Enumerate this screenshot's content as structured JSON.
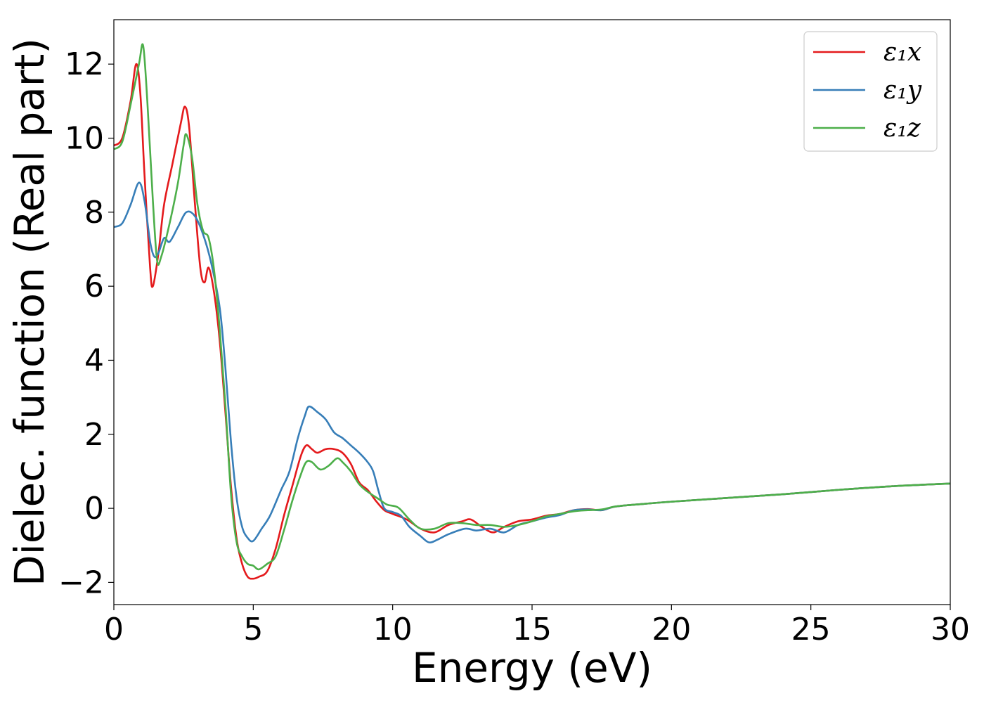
{
  "chart_data": {
    "type": "line",
    "xlabel": "Energy (eV)",
    "ylabel": "Dielec. function (Real part)",
    "xlim": [
      0,
      30
    ],
    "ylim": [
      -2.6,
      13.2
    ],
    "xticks": [
      0,
      5,
      10,
      15,
      20,
      25,
      30
    ],
    "yticks": [
      -2,
      0,
      2,
      4,
      6,
      8,
      10,
      12
    ],
    "xtick_labels": [
      "0",
      "5",
      "10",
      "15",
      "20",
      "25",
      "30"
    ],
    "ytick_labels": [
      "−2",
      "0",
      "2",
      "4",
      "6",
      "8",
      "10",
      "12"
    ],
    "grid": false,
    "legend_position": "top-right",
    "series": [
      {
        "name": "ε₁x",
        "color": "#e41a1c",
        "points": [
          [
            0,
            9.8
          ],
          [
            0.3,
            10.0
          ],
          [
            0.6,
            11.0
          ],
          [
            0.8,
            12.0
          ],
          [
            0.95,
            11.2
          ],
          [
            1.1,
            9.0
          ],
          [
            1.3,
            6.5
          ],
          [
            1.4,
            6.0
          ],
          [
            1.6,
            6.9
          ],
          [
            1.8,
            8.2
          ],
          [
            2.1,
            9.3
          ],
          [
            2.4,
            10.4
          ],
          [
            2.55,
            10.85
          ],
          [
            2.7,
            10.3
          ],
          [
            2.9,
            8.3
          ],
          [
            3.1,
            6.5
          ],
          [
            3.25,
            6.1
          ],
          [
            3.4,
            6.5
          ],
          [
            3.6,
            5.8
          ],
          [
            3.8,
            4.5
          ],
          [
            4.0,
            2.6
          ],
          [
            4.2,
            0.6
          ],
          [
            4.4,
            -0.8
          ],
          [
            4.6,
            -1.5
          ],
          [
            4.8,
            -1.85
          ],
          [
            5.0,
            -1.9
          ],
          [
            5.2,
            -1.85
          ],
          [
            5.5,
            -1.7
          ],
          [
            5.8,
            -1.1
          ],
          [
            6.1,
            -0.2
          ],
          [
            6.4,
            0.6
          ],
          [
            6.7,
            1.4
          ],
          [
            6.9,
            1.7
          ],
          [
            7.1,
            1.6
          ],
          [
            7.3,
            1.5
          ],
          [
            7.6,
            1.6
          ],
          [
            7.9,
            1.6
          ],
          [
            8.2,
            1.5
          ],
          [
            8.5,
            1.2
          ],
          [
            8.8,
            0.7
          ],
          [
            9.1,
            0.5
          ],
          [
            9.4,
            0.2
          ],
          [
            9.7,
            -0.05
          ],
          [
            10.0,
            -0.15
          ],
          [
            10.5,
            -0.3
          ],
          [
            11.0,
            -0.55
          ],
          [
            11.5,
            -0.65
          ],
          [
            12.0,
            -0.45
          ],
          [
            12.5,
            -0.35
          ],
          [
            12.8,
            -0.3
          ],
          [
            13.2,
            -0.5
          ],
          [
            13.6,
            -0.65
          ],
          [
            14.0,
            -0.5
          ],
          [
            14.5,
            -0.35
          ],
          [
            15.0,
            -0.3
          ],
          [
            15.5,
            -0.2
          ],
          [
            16.0,
            -0.15
          ],
          [
            16.5,
            -0.05
          ],
          [
            17.0,
            -0.02
          ],
          [
            17.5,
            -0.05
          ],
          [
            18.0,
            0.05
          ],
          [
            19.0,
            0.12
          ],
          [
            20.0,
            0.18
          ],
          [
            22.0,
            0.28
          ],
          [
            24.0,
            0.38
          ],
          [
            26.0,
            0.5
          ],
          [
            28.0,
            0.6
          ],
          [
            30.0,
            0.67
          ]
        ]
      },
      {
        "name": "ε₁y",
        "color": "#377eb8",
        "points": [
          [
            0,
            7.6
          ],
          [
            0.3,
            7.7
          ],
          [
            0.6,
            8.2
          ],
          [
            0.9,
            8.8
          ],
          [
            1.1,
            8.3
          ],
          [
            1.3,
            7.2
          ],
          [
            1.45,
            6.8
          ],
          [
            1.6,
            6.9
          ],
          [
            1.8,
            7.3
          ],
          [
            2.0,
            7.2
          ],
          [
            2.3,
            7.6
          ],
          [
            2.6,
            8.0
          ],
          [
            2.9,
            7.9
          ],
          [
            3.2,
            7.4
          ],
          [
            3.5,
            6.6
          ],
          [
            3.8,
            5.4
          ],
          [
            4.0,
            3.8
          ],
          [
            4.2,
            1.8
          ],
          [
            4.4,
            0.3
          ],
          [
            4.6,
            -0.5
          ],
          [
            4.8,
            -0.8
          ],
          [
            5.0,
            -0.88
          ],
          [
            5.3,
            -0.55
          ],
          [
            5.6,
            -0.2
          ],
          [
            6.0,
            0.5
          ],
          [
            6.3,
            1.0
          ],
          [
            6.6,
            1.9
          ],
          [
            6.85,
            2.5
          ],
          [
            7.0,
            2.75
          ],
          [
            7.3,
            2.6
          ],
          [
            7.6,
            2.4
          ],
          [
            7.9,
            2.05
          ],
          [
            8.2,
            1.9
          ],
          [
            8.5,
            1.7
          ],
          [
            8.8,
            1.5
          ],
          [
            9.1,
            1.25
          ],
          [
            9.3,
            1.0
          ],
          [
            9.5,
            0.45
          ],
          [
            9.7,
            0.0
          ],
          [
            10.0,
            -0.1
          ],
          [
            10.3,
            -0.2
          ],
          [
            10.6,
            -0.5
          ],
          [
            11.0,
            -0.75
          ],
          [
            11.3,
            -0.92
          ],
          [
            11.6,
            -0.85
          ],
          [
            12.0,
            -0.7
          ],
          [
            12.6,
            -0.55
          ],
          [
            13.0,
            -0.6
          ],
          [
            13.5,
            -0.55
          ],
          [
            14.0,
            -0.65
          ],
          [
            14.5,
            -0.45
          ],
          [
            15.0,
            -0.35
          ],
          [
            15.5,
            -0.25
          ],
          [
            16.0,
            -0.18
          ],
          [
            16.5,
            -0.05
          ],
          [
            17.0,
            -0.03
          ],
          [
            17.5,
            -0.05
          ],
          [
            18.0,
            0.05
          ],
          [
            19.0,
            0.12
          ],
          [
            20.0,
            0.18
          ],
          [
            22.0,
            0.28
          ],
          [
            24.0,
            0.38
          ],
          [
            26.0,
            0.5
          ],
          [
            28.0,
            0.6
          ],
          [
            30.0,
            0.67
          ]
        ]
      },
      {
        "name": "ε₁z",
        "color": "#4daf4a",
        "points": [
          [
            0,
            9.7
          ],
          [
            0.3,
            9.9
          ],
          [
            0.6,
            10.9
          ],
          [
            0.9,
            12.0
          ],
          [
            1.05,
            12.5
          ],
          [
            1.2,
            11.0
          ],
          [
            1.4,
            8.3
          ],
          [
            1.55,
            6.7
          ],
          [
            1.7,
            6.8
          ],
          [
            2.0,
            7.7
          ],
          [
            2.3,
            8.8
          ],
          [
            2.5,
            9.8
          ],
          [
            2.6,
            10.1
          ],
          [
            2.8,
            9.5
          ],
          [
            3.0,
            8.2
          ],
          [
            3.2,
            7.5
          ],
          [
            3.4,
            7.3
          ],
          [
            3.6,
            6.4
          ],
          [
            3.8,
            4.8
          ],
          [
            4.0,
            2.8
          ],
          [
            4.2,
            0.4
          ],
          [
            4.4,
            -0.9
          ],
          [
            4.6,
            -1.3
          ],
          [
            4.8,
            -1.5
          ],
          [
            5.0,
            -1.55
          ],
          [
            5.2,
            -1.65
          ],
          [
            5.5,
            -1.5
          ],
          [
            5.8,
            -1.3
          ],
          [
            6.1,
            -0.6
          ],
          [
            6.4,
            0.2
          ],
          [
            6.7,
            0.9
          ],
          [
            6.9,
            1.25
          ],
          [
            7.1,
            1.25
          ],
          [
            7.4,
            1.05
          ],
          [
            7.7,
            1.15
          ],
          [
            8.0,
            1.35
          ],
          [
            8.2,
            1.25
          ],
          [
            8.5,
            1.0
          ],
          [
            8.8,
            0.65
          ],
          [
            9.1,
            0.45
          ],
          [
            9.5,
            0.25
          ],
          [
            9.8,
            0.1
          ],
          [
            10.2,
            0.02
          ],
          [
            10.6,
            -0.3
          ],
          [
            11.0,
            -0.55
          ],
          [
            11.5,
            -0.55
          ],
          [
            12.0,
            -0.4
          ],
          [
            12.5,
            -0.4
          ],
          [
            13.0,
            -0.45
          ],
          [
            13.5,
            -0.45
          ],
          [
            14.0,
            -0.5
          ],
          [
            14.5,
            -0.45
          ],
          [
            15.0,
            -0.35
          ],
          [
            15.5,
            -0.22
          ],
          [
            16.0,
            -0.15
          ],
          [
            16.5,
            -0.08
          ],
          [
            17.0,
            -0.05
          ],
          [
            17.5,
            -0.03
          ],
          [
            18.0,
            0.05
          ],
          [
            19.0,
            0.12
          ],
          [
            20.0,
            0.18
          ],
          [
            22.0,
            0.28
          ],
          [
            24.0,
            0.38
          ],
          [
            26.0,
            0.5
          ],
          [
            28.0,
            0.6
          ],
          [
            30.0,
            0.67
          ]
        ]
      }
    ]
  }
}
